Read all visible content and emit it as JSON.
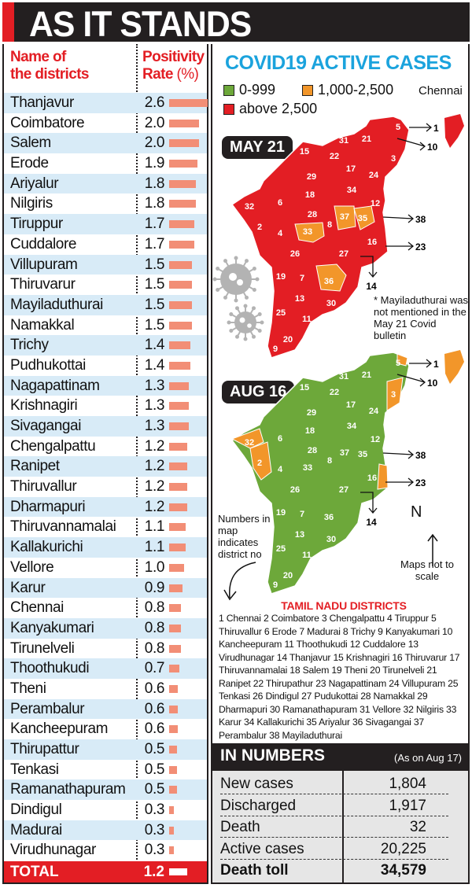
{
  "header": {
    "title": "AS IT STANDS"
  },
  "table": {
    "col1": "Name of\nthe districts",
    "col2_a": "Positivity",
    "col2_b": "Rate",
    "col2_unit": "(%)",
    "rows": [
      {
        "name": "Thanjavur",
        "rate": "2.6"
      },
      {
        "name": "Coimbatore",
        "rate": "2.0"
      },
      {
        "name": "Salem",
        "rate": "2.0"
      },
      {
        "name": "Erode",
        "rate": "1.9"
      },
      {
        "name": "Ariyalur",
        "rate": "1.8"
      },
      {
        "name": "Nilgiris",
        "rate": "1.8"
      },
      {
        "name": "Tiruppur",
        "rate": "1.7"
      },
      {
        "name": "Cuddalore",
        "rate": "1.7"
      },
      {
        "name": "Villupuram",
        "rate": "1.5"
      },
      {
        "name": "Thiruvarur",
        "rate": "1.5"
      },
      {
        "name": "Mayiladuthurai",
        "rate": "1.5"
      },
      {
        "name": "Namakkal",
        "rate": "1.5"
      },
      {
        "name": "Trichy",
        "rate": "1.4"
      },
      {
        "name": "Pudhukottai",
        "rate": "1.4"
      },
      {
        "name": "Nagapattinam",
        "rate": "1.3"
      },
      {
        "name": "Krishnagiri",
        "rate": "1.3"
      },
      {
        "name": "Sivagangai",
        "rate": "1.3"
      },
      {
        "name": "Chengalpattu",
        "rate": "1.2"
      },
      {
        "name": "Ranipet",
        "rate": "1.2"
      },
      {
        "name": "Thiruvallur",
        "rate": "1.2"
      },
      {
        "name": "Dharmapuri",
        "rate": "1.2"
      },
      {
        "name": "Thiruvannamalai",
        "rate": "1.1"
      },
      {
        "name": "Kallakurichi",
        "rate": "1.1"
      },
      {
        "name": "Vellore",
        "rate": "1.0"
      },
      {
        "name": "Karur",
        "rate": "0.9"
      },
      {
        "name": "Chennai",
        "rate": "0.8"
      },
      {
        "name": "Kanyakumari",
        "rate": "0.8"
      },
      {
        "name": "Tirunelveli",
        "rate": "0.8"
      },
      {
        "name": "Thoothukudi",
        "rate": "0.7"
      },
      {
        "name": "Theni",
        "rate": "0.6"
      },
      {
        "name": "Perambalur",
        "rate": "0.6"
      },
      {
        "name": "Kancheepuram",
        "rate": "0.6"
      },
      {
        "name": "Thirupattur",
        "rate": "0.5"
      },
      {
        "name": "Tenkasi",
        "rate": "0.5"
      },
      {
        "name": "Ramanathapuram",
        "rate": "0.5"
      },
      {
        "name": "Dindigul",
        "rate": "0.3"
      },
      {
        "name": "Madurai",
        "rate": "0.3"
      },
      {
        "name": "Virudhunagar",
        "rate": "0.3"
      }
    ],
    "total": {
      "name": "TOTAL",
      "rate": "1.2"
    }
  },
  "chart_data": {
    "type": "bar",
    "orientation": "horizontal",
    "ylabel": "Positivity Rate (%)",
    "categories": [
      "Thanjavur",
      "Coimbatore",
      "Salem",
      "Erode",
      "Ariyalur",
      "Nilgiris",
      "Tiruppur",
      "Cuddalore",
      "Villupuram",
      "Thiruvarur",
      "Mayiladuthurai",
      "Namakkal",
      "Trichy",
      "Pudhukottai",
      "Nagapattinam",
      "Krishnagiri",
      "Sivagangai",
      "Chengalpattu",
      "Ranipet",
      "Thiruvallur",
      "Dharmapuri",
      "Thiruvannamalai",
      "Kallakurichi",
      "Vellore",
      "Karur",
      "Chennai",
      "Kanyakumari",
      "Tirunelveli",
      "Thoothukudi",
      "Theni",
      "Perambalur",
      "Kancheepuram",
      "Thirupattur",
      "Tenkasi",
      "Ramanathapuram",
      "Dindigul",
      "Madurai",
      "Virudhunagar",
      "TOTAL"
    ],
    "values": [
      2.6,
      2.0,
      2.0,
      1.9,
      1.8,
      1.8,
      1.7,
      1.7,
      1.5,
      1.5,
      1.5,
      1.5,
      1.4,
      1.4,
      1.3,
      1.3,
      1.3,
      1.2,
      1.2,
      1.2,
      1.2,
      1.1,
      1.1,
      1.0,
      0.9,
      0.8,
      0.8,
      0.8,
      0.7,
      0.6,
      0.6,
      0.6,
      0.5,
      0.5,
      0.5,
      0.3,
      0.3,
      0.3,
      1.2
    ],
    "bar_color": "#f28e76"
  },
  "maps": {
    "title": "COVID19 ACTIVE CASES",
    "legend": [
      {
        "label": "0-999",
        "color": "#6da83a"
      },
      {
        "label": "1,000-2,500",
        "color": "#f2962a"
      },
      {
        "label": "above 2,500",
        "color": "#e31e24"
      }
    ],
    "chennai_label": "Chennai",
    "panels": [
      {
        "date": "MAY 21",
        "base_color": "#e31e24",
        "orange": [
          "33",
          "37",
          "35",
          "36"
        ],
        "callouts": [
          "1",
          "10",
          "38",
          "23",
          "14"
        ]
      },
      {
        "date": "AUG 16",
        "base_color": "#6da83a",
        "orange": [
          "32",
          "2",
          "3",
          "1",
          "23"
        ],
        "callouts": [
          "1",
          "10",
          "38",
          "23",
          "14"
        ]
      }
    ],
    "district_numbers": [
      "5",
      "31",
      "21",
      "15",
      "22",
      "17",
      "3",
      "24",
      "29",
      "34",
      "18",
      "6",
      "32",
      "12",
      "28",
      "37",
      "35",
      "8",
      "2",
      "4",
      "33",
      "16",
      "26",
      "27",
      "19",
      "7",
      "36",
      "13",
      "30",
      "25",
      "11",
      "20",
      "9"
    ],
    "note": "* Mayiladuthurai was not mentioned in the May 21 Covid bulletin",
    "numbers_note": "Numbers in map indicates district no",
    "north": "N",
    "scale_note": "Maps not to scale"
  },
  "districts": {
    "title": "TAMIL NADU DISTRICTS",
    "text": "1 Chennai 2 Coimbatore 3 Chengalpattu 4 Tiruppur 5 Thiruvallur 6 Erode 7 Madurai 8 Trichy 9 Kanyakumari 10 Kancheepuram 11 Thoothukudi 12 Cuddalore 13 Virudhunagar 14 Thanjavur 15 Krishnagiri 16 Thiruvarur 17 Thiruvannamalai 18 Salem 19 Theni 20 Tirunelveli 21 Ranipet 22 Thirupathur 23 Nagapattinam 24 Villupuram 25 Tenkasi 26 Dindigul 27 Pudukottai 28 Namakkal 29 Dharmapuri 30 Ramanathapuram 31 Vellore 32 Nilgiris 33 Karur 34 Kallakurichi 35 Ariyalur 36 Sivagangai 37 Perambalur 38 Mayiladuthurai"
  },
  "numbers": {
    "title": "IN NUMBERS",
    "subtitle": "(As on Aug 17)",
    "rows": [
      {
        "label": "New cases",
        "value": "1,804"
      },
      {
        "label": "Discharged",
        "value": "1,917"
      },
      {
        "label": "Death",
        "value": "32"
      },
      {
        "label": "Active cases",
        "value": "20,225"
      },
      {
        "label": "Death toll",
        "value": "34,579"
      }
    ]
  }
}
